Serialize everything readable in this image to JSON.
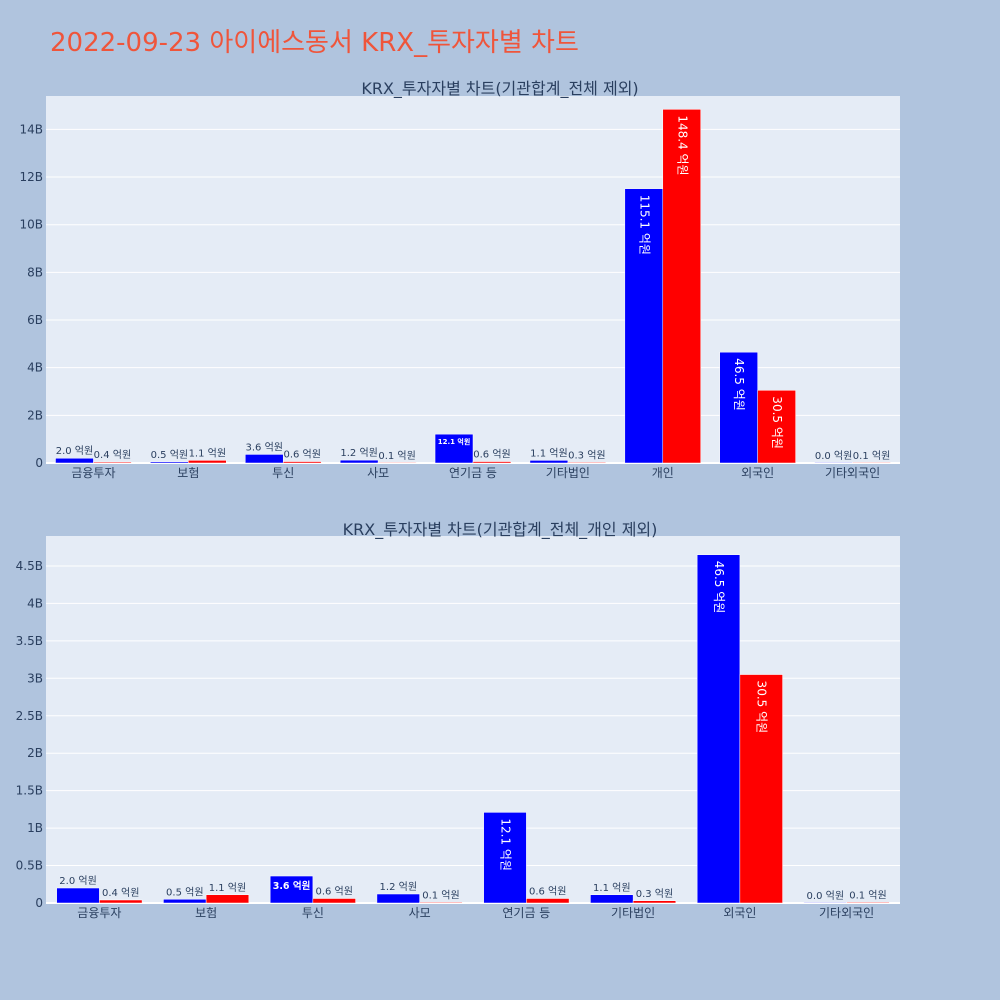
{
  "page": {
    "title": "2022-09-23 아이에스동서 KRX_투자자별 차트"
  },
  "colors": {
    "background": "#b0c4de",
    "plot": "#e5ecf6",
    "buy": "#0000ff",
    "sell": "#ff0000",
    "title": "#ef553b",
    "text": "#2a3f5f"
  },
  "chart_data": [
    {
      "type": "bar",
      "title": "KRX_투자자별 차트(기관합계_전체 제외)",
      "categories": [
        "금융투자",
        "보험",
        "투신",
        "사모",
        "연기금 등",
        "기타법인",
        "개인",
        "외국인",
        "기타외국인"
      ],
      "series": [
        {
          "color": "#0000ff",
          "values": [
            0.2,
            0.05,
            0.36,
            0.12,
            1.21,
            0.11,
            11.51,
            4.65,
            0.0
          ],
          "labels": [
            "2.0 억원",
            "0.5 억원",
            "3.6 억원",
            "1.2 억원",
            "12.1 억원",
            "1.1 억원",
            "115.1 억원",
            "46.5 억원",
            "0.0 억원"
          ]
        },
        {
          "color": "#ff0000",
          "values": [
            0.04,
            0.11,
            0.06,
            0.01,
            0.06,
            0.03,
            14.84,
            3.05,
            0.01
          ],
          "labels": [
            "0.4 억원",
            "1.1 억원",
            "0.6 억원",
            "0.1 억원",
            "0.6 억원",
            "0.3 억원",
            "148.4 억원",
            "30.5 억원",
            "0.1 억원"
          ]
        }
      ],
      "ylim": [
        0,
        15.4
      ],
      "yticks": [
        0,
        2,
        4,
        6,
        8,
        10,
        12,
        14
      ],
      "ytick_labels": [
        "0",
        "2B",
        "4B",
        "6B",
        "8B",
        "10B",
        "12B",
        "14B"
      ],
      "grid": true
    },
    {
      "type": "bar",
      "title": "KRX_투자자별 차트(기관합계_전체_개인 제외)",
      "categories": [
        "금융투자",
        "보험",
        "투신",
        "사모",
        "연기금 등",
        "기타법인",
        "외국인",
        "기타외국인"
      ],
      "series": [
        {
          "color": "#0000ff",
          "values": [
            0.2,
            0.05,
            0.36,
            0.12,
            1.21,
            0.11,
            4.65,
            0.0
          ],
          "labels": [
            "2.0 억원",
            "0.5 억원",
            "3.6 억원",
            "1.2 억원",
            "12.1 억원",
            "1.1 억원",
            "46.5 억원",
            "0.0 억원"
          ]
        },
        {
          "color": "#ff0000",
          "values": [
            0.04,
            0.11,
            0.06,
            0.01,
            0.06,
            0.03,
            3.05,
            0.01
          ],
          "labels": [
            "0.4 억원",
            "1.1 억원",
            "0.6 억원",
            "0.1 억원",
            "0.6 억원",
            "0.3 억원",
            "30.5 억원",
            "0.1 억원"
          ]
        }
      ],
      "ylim": [
        0,
        4.9
      ],
      "yticks": [
        0,
        0.5,
        1,
        1.5,
        2,
        2.5,
        3,
        3.5,
        4,
        4.5
      ],
      "ytick_labels": [
        "0",
        "0.5B",
        "1B",
        "1.5B",
        "2B",
        "2.5B",
        "3B",
        "3.5B",
        "4B",
        "4.5B"
      ],
      "grid": true
    }
  ]
}
